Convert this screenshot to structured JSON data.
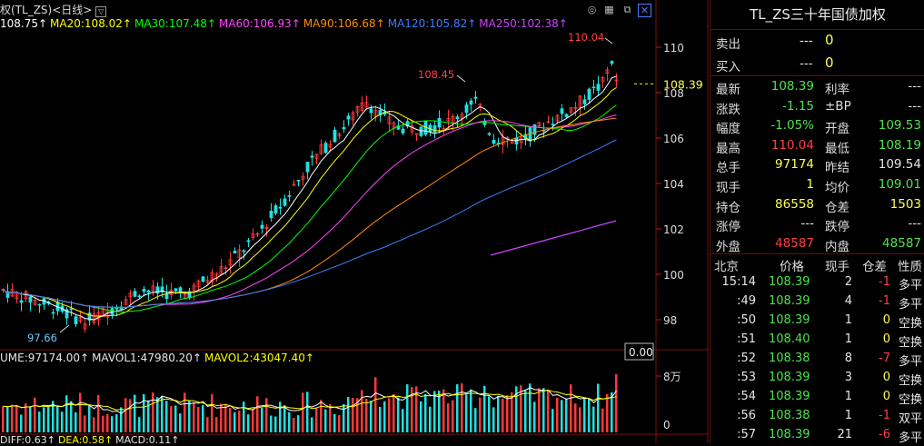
{
  "header": {
    "title": "权(TL_ZS)<日线>",
    "ma_legend": [
      {
        "label": "108.75",
        "color": "#ffffff"
      },
      {
        "label": "MA20:108.02",
        "color": "#ffff00"
      },
      {
        "label": "MA30:107.48",
        "color": "#00ff00"
      },
      {
        "label": "MA60:106.93",
        "color": "#ff44ff"
      },
      {
        "label": "MA90:106.68",
        "color": "#ff8c00"
      },
      {
        "label": "MA120:105.82",
        "color": "#3b7dff"
      },
      {
        "label": "MA250:102.38",
        "color": "#cc44ff"
      }
    ]
  },
  "price_chart": {
    "y_ticks": [
      "110",
      "108",
      "106",
      "104",
      "102",
      "100",
      "98"
    ],
    "current_price_tag": "108.39",
    "high_label": "110.04",
    "local_high_label": "108.45",
    "low_label": "97.66"
  },
  "volume_chart": {
    "legend": [
      {
        "label": "UME:97174.00",
        "color": "#e6e6e6"
      },
      {
        "label": "MAVOL1:47980.20",
        "color": "#e6e6e6"
      },
      {
        "label": "MAVOL2:43047.40",
        "color": "#ffff00"
      }
    ],
    "value_box": "0.00",
    "y_ticks": [
      "8万",
      "0"
    ]
  },
  "macd_legend": [
    {
      "label": "DIFF:0.63",
      "color": "#e6e6e6"
    },
    {
      "label": "DEA:0.58",
      "color": "#ffff00"
    },
    {
      "label": "MACD:0.11",
      "color": "#e6e6e6"
    }
  ],
  "quote": {
    "title": "TL_ZS三十年国债加权",
    "sell_label": "卖出",
    "sell_price": "---",
    "sell_vol": "0",
    "buy_label": "买入",
    "buy_price": "---",
    "buy_vol": "0",
    "rows": [
      {
        "l1": "最新",
        "v1": "108.39",
        "c1": "g",
        "l2": "利率",
        "v2": "---",
        "c2": "w"
      },
      {
        "l1": "涨跌",
        "v1": "-1.15",
        "c1": "g",
        "l2": "±BP",
        "v2": "---",
        "c2": "w"
      },
      {
        "l1": "幅度",
        "v1": "-1.05%",
        "c1": "g",
        "l2": "开盘",
        "v2": "109.53",
        "c2": "g"
      },
      {
        "l1": "最高",
        "v1": "110.04",
        "c1": "r",
        "l2": "最低",
        "v2": "108.19",
        "c2": "g"
      },
      {
        "l1": "总手",
        "v1": "97174",
        "c1": "y",
        "l2": "昨结",
        "v2": "109.54",
        "c2": "w"
      },
      {
        "l1": "现手",
        "v1": "1",
        "c1": "y",
        "l2": "均价",
        "v2": "109.01",
        "c2": "g"
      },
      {
        "l1": "持仓",
        "v1": "86558",
        "c1": "y",
        "l2": "仓差",
        "v2": "1503",
        "c2": "y"
      },
      {
        "l1": "涨停",
        "v1": "---",
        "c1": "w",
        "l2": "跌停",
        "v2": "---",
        "c2": "w"
      },
      {
        "l1": "外盘",
        "v1": "48587",
        "c1": "r",
        "l2": "内盘",
        "v2": "48587",
        "c2": "g"
      }
    ]
  },
  "ticks": {
    "headers": [
      "北京",
      "价格",
      "现手",
      "仓差",
      "性质"
    ],
    "rows": [
      {
        "time": "15:14",
        "price": "108.39",
        "vol": "2",
        "diff": "-1",
        "diff_c": "r",
        "nature": "多平",
        "nature_c": "w"
      },
      {
        "time": ":49",
        "price": "108.39",
        "vol": "4",
        "diff": "-1",
        "diff_c": "r",
        "nature": "多平",
        "nature_c": "w"
      },
      {
        "time": ":50",
        "price": "108.39",
        "vol": "1",
        "diff": "0",
        "diff_c": "y",
        "nature": "空换",
        "nature_c": "w"
      },
      {
        "time": ":51",
        "price": "108.40",
        "vol": "1",
        "diff": "0",
        "diff_c": "y",
        "nature": "空换",
        "nature_c": "w"
      },
      {
        "time": ":52",
        "price": "108.38",
        "vol": "8",
        "diff": "-7",
        "diff_c": "r",
        "nature": "多平",
        "nature_c": "w"
      },
      {
        "time": ":53",
        "price": "108.39",
        "vol": "3",
        "diff": "0",
        "diff_c": "y",
        "nature": "空换",
        "nature_c": "w"
      },
      {
        "time": ":54",
        "price": "108.39",
        "vol": "1",
        "diff": "0",
        "diff_c": "y",
        "nature": "空换",
        "nature_c": "w"
      },
      {
        "time": ":56",
        "price": "108.38",
        "vol": "1",
        "diff": "-1",
        "diff_c": "r",
        "nature": "双平",
        "nature_c": "w"
      },
      {
        "time": ":57",
        "price": "108.39",
        "vol": "21",
        "diff": "-6",
        "diff_c": "r",
        "nature": "多平",
        "nature_c": "w"
      }
    ]
  },
  "icons": [
    "eye-hide-icon",
    "grid-icon",
    "expand-icon",
    "close-box-icon",
    "dropdown-icon"
  ]
}
